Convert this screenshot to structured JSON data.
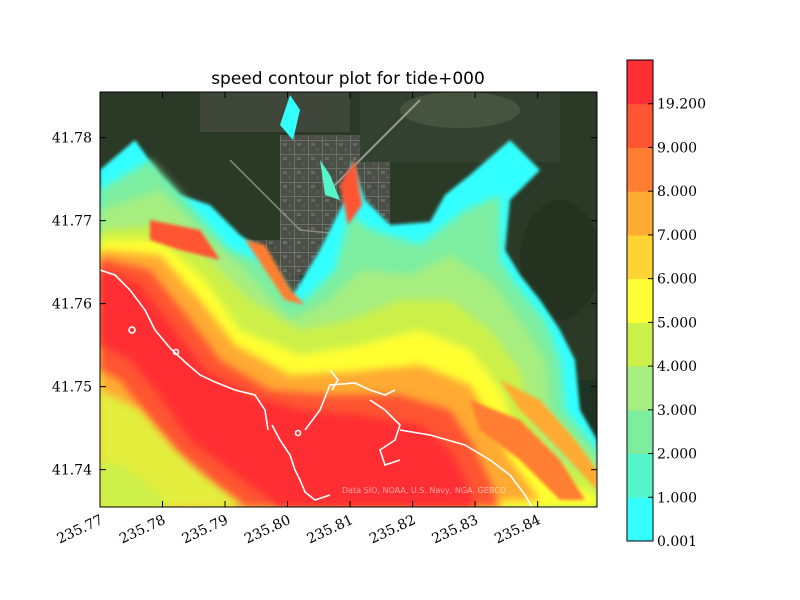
{
  "chart_data": {
    "type": "heatmap",
    "title": "speed contour plot for tide+000",
    "xlabel": "",
    "ylabel": "",
    "x_ticks": [
      "235.77",
      "235.78",
      "235.79",
      "235.80",
      "235.81",
      "235.82",
      "235.83",
      "235.84"
    ],
    "x_tick_values": [
      235.77,
      235.78,
      235.79,
      235.8,
      235.81,
      235.82,
      235.83,
      235.84
    ],
    "y_ticks": [
      "41.74",
      "41.75",
      "41.76",
      "41.77",
      "41.78"
    ],
    "y_tick_values": [
      41.74,
      41.75,
      41.76,
      41.77,
      41.78
    ],
    "xlim": [
      235.77,
      235.8495
    ],
    "ylim": [
      41.7355,
      41.7855
    ],
    "basemap_attribution": "Data SIO, NOAA, U.S. Navy, NGA, GEBCO",
    "colorbar": {
      "levels": [
        "0.001",
        "1.000",
        "2.000",
        "3.000",
        "4.000",
        "5.000",
        "6.000",
        "7.000",
        "8.000",
        "9.000",
        "19.200"
      ],
      "colors": [
        "#33ffff",
        "#55f5cc",
        "#7deea0",
        "#a6ee80",
        "#ccf04a",
        "#ffff33",
        "#ffd333",
        "#ffaa33",
        "#ff7e33",
        "#ff5533",
        "#ff2f33"
      ]
    }
  }
}
